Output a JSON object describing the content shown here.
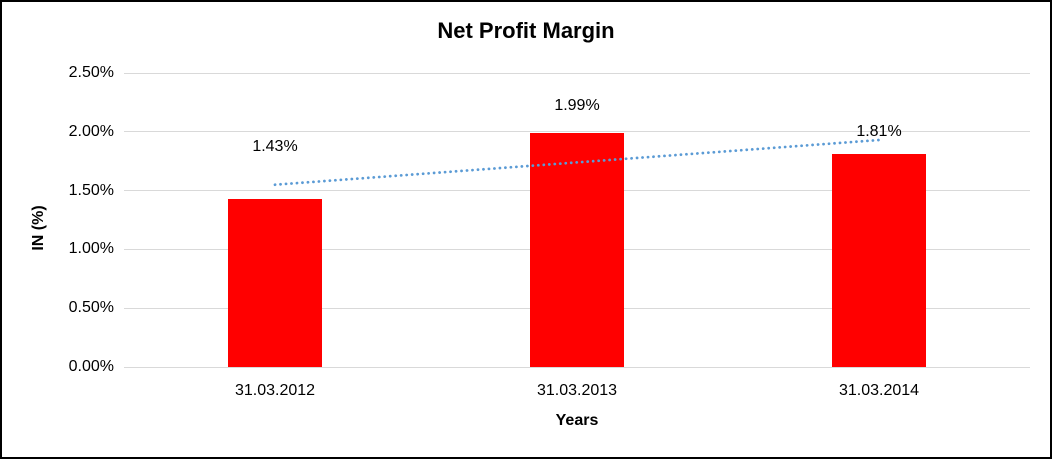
{
  "chart_data": {
    "type": "bar",
    "title": "Net Profit Margin",
    "xlabel": "Years",
    "ylabel": "IN (%)",
    "categories": [
      "31.03.2012",
      "31.03.2013",
      "31.03.2014"
    ],
    "values": [
      1.43,
      1.99,
      1.81
    ],
    "data_labels": [
      "1.43%",
      "1.99%",
      "1.81%"
    ],
    "ylim": [
      0,
      2.5
    ],
    "yticks": [
      0,
      0.5,
      1.0,
      1.5,
      2.0,
      2.5
    ],
    "ytick_labels": [
      "0.00%",
      "0.50%",
      "1.00%",
      "1.50%",
      "2.00%",
      "2.50%"
    ],
    "grid": true,
    "legend_position": "none",
    "bar_color": "#FF0000",
    "text_color": "#000000",
    "gridline_color": "#D9D9D9",
    "frame_color": "#000000",
    "trendline": {
      "type": "linear",
      "style": "dotted",
      "color": "#5B9BD5",
      "start_value": 1.55,
      "end_value": 1.93
    }
  }
}
